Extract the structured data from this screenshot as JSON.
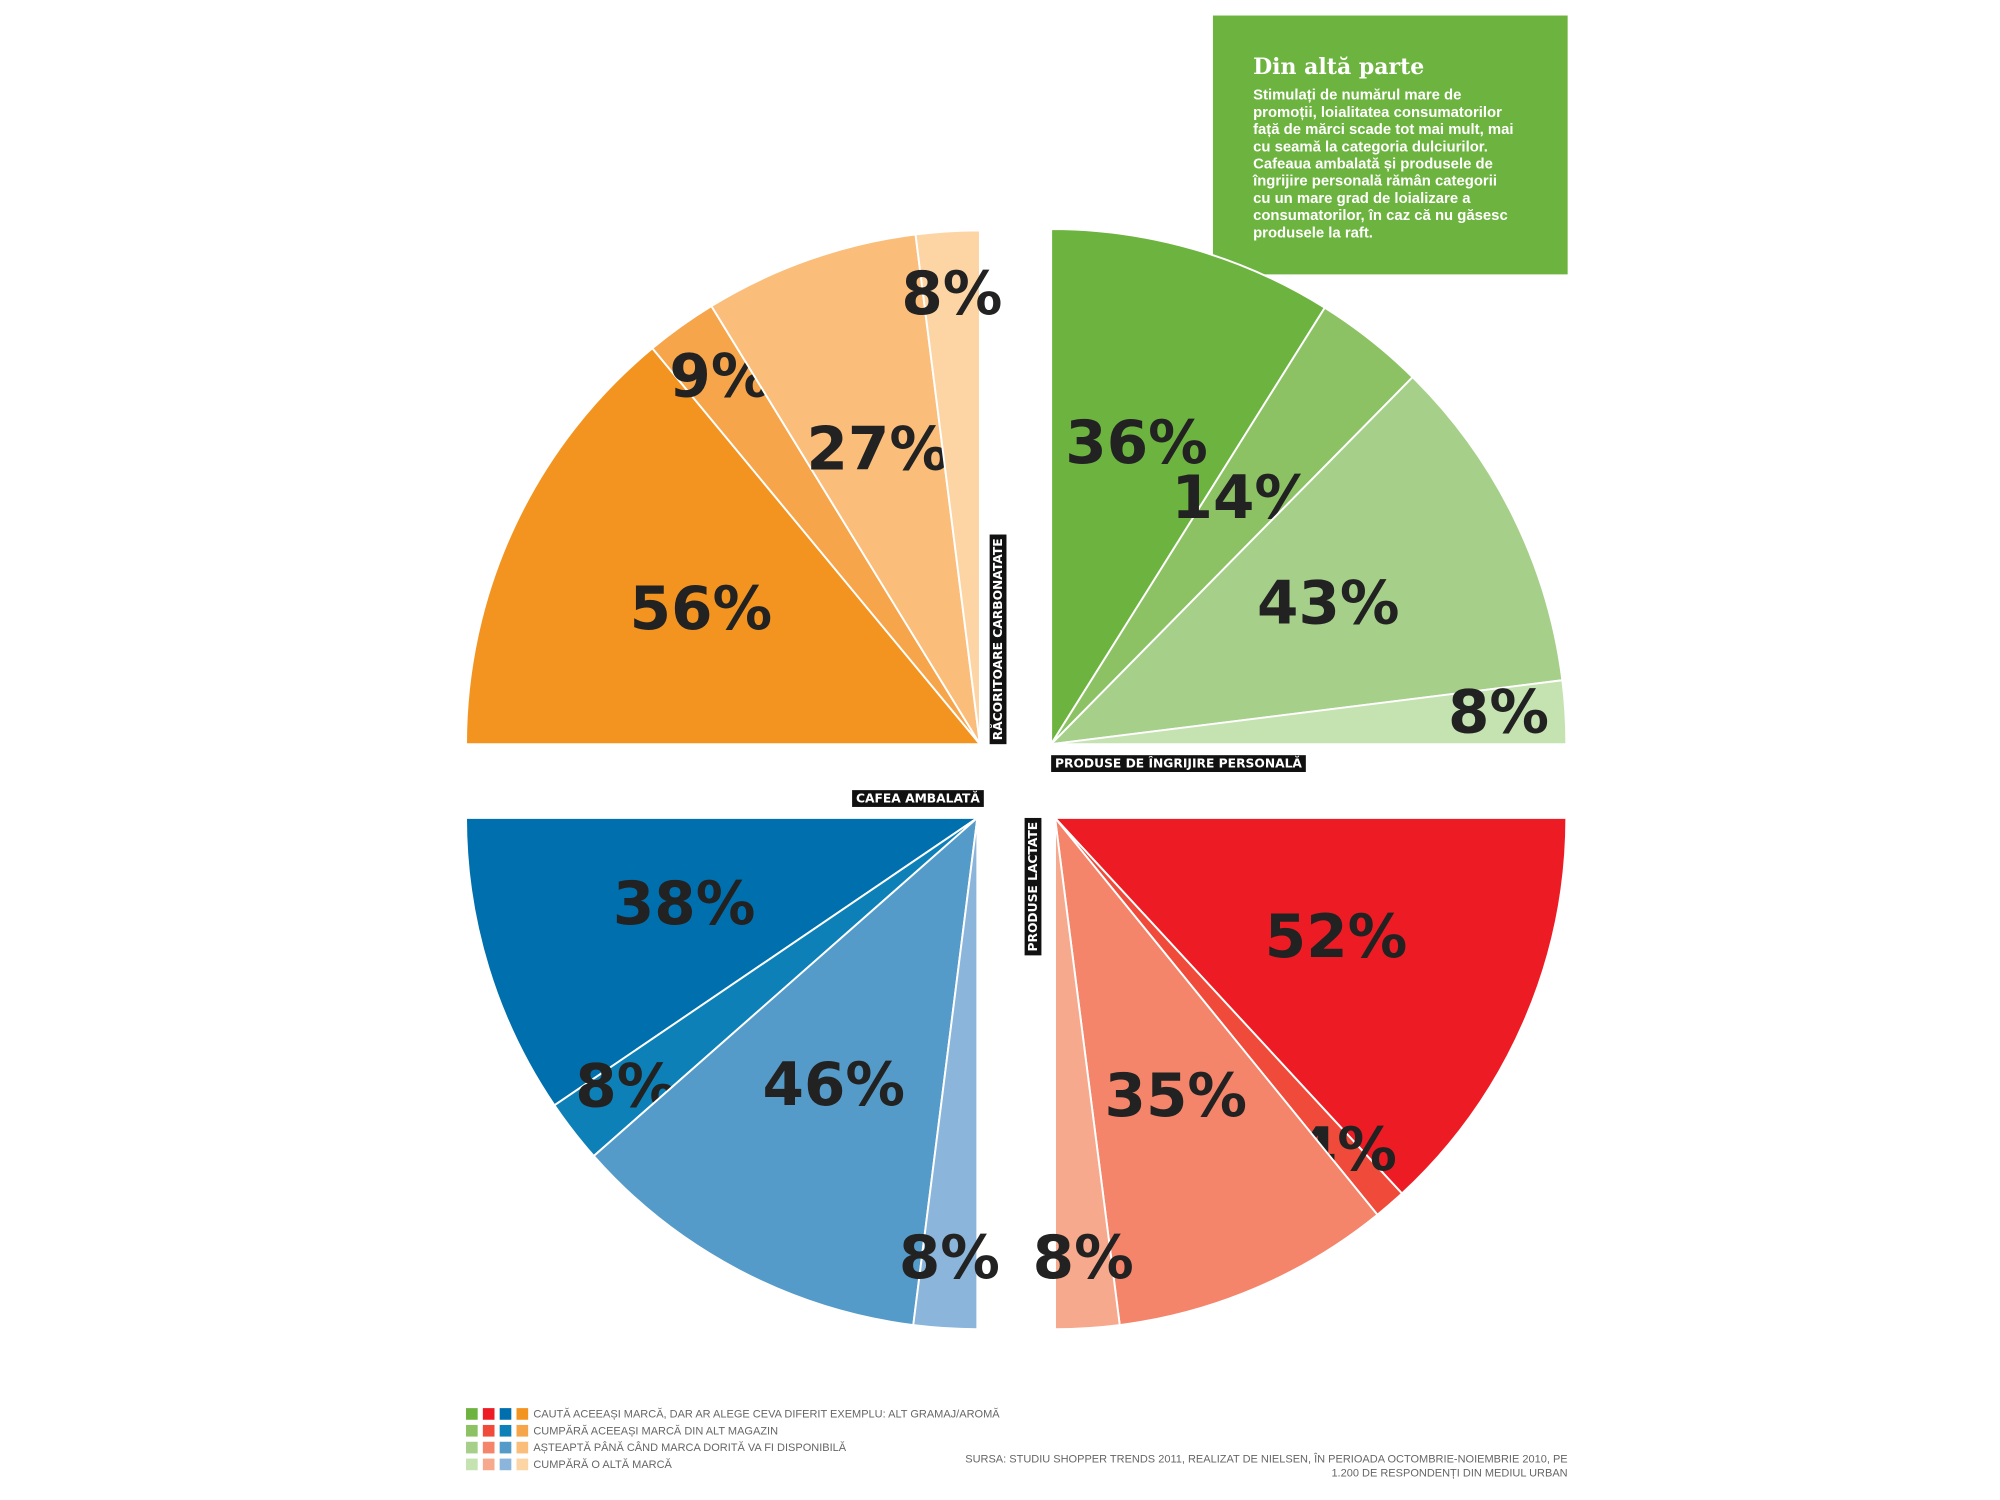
{
  "chart_data": [
    {
      "type": "pie",
      "title": "PRODUSE DE ÎNGRIJIRE PERSONALĂ",
      "values": [
        36,
        14,
        43,
        8
      ],
      "value_labels": [
        "36%",
        "14%",
        "43%",
        "8%"
      ],
      "colors": [
        "#6db33f",
        "#8cc264",
        "#a6d08a",
        "#c5e2b1"
      ]
    },
    {
      "type": "pie",
      "title": "PRODUSE LACTATE",
      "values": [
        52,
        4,
        35,
        8
      ],
      "value_labels": [
        "52%",
        "4%",
        "35%",
        "8%"
      ],
      "colors": [
        "#ed1c24",
        "#f04a3a",
        "#f4846a",
        "#f7a98d"
      ]
    },
    {
      "type": "pie",
      "title": "CAFEA AMBALATĂ",
      "values": [
        38,
        8,
        46,
        8
      ],
      "value_labels": [
        "38%",
        "8%",
        "46%",
        "8%"
      ],
      "colors": [
        "#006fad",
        "#0d80b8",
        "#559bc9",
        "#8bb5da"
      ]
    },
    {
      "type": "pie",
      "title": "RĂCORITOARE CARBONATATE",
      "values": [
        56,
        9,
        27,
        8
      ],
      "value_labels": [
        "56%",
        "9%",
        "27%",
        "8%"
      ],
      "colors": [
        "#f39420",
        "#f6a54a",
        "#fbbd7a",
        "#fdd5a4"
      ]
    }
  ],
  "box": {
    "title": "Din altă parte",
    "lines": [
      "Stimulați de numărul mare de",
      "promoții, loialitatea consumatorilor",
      "față de mărci scade tot mai mult, mai",
      "cu seamă la categoria dulciurilor.",
      "Cafeaua ambalată și produsele de",
      "îngrijire personală rămân categorii",
      "cu un mare grad de loializare a",
      "consumatorilor, în caz că nu găsesc",
      "produsele la raft."
    ]
  },
  "legend": [
    "CAUTĂ ACEEAȘI MARCĂ, DAR AR ALEGE CEVA DIFERIT EXEMPLU: ALT GRAMAJ/AROMĂ",
    "CUMPĂRĂ ACEEAȘI MARCĂ DIN ALT MAGAZIN",
    "AȘTEAPTĂ PÂNĂ CÂND MARCA DORITĂ VA FI DISPONIBILĂ",
    "CUMPĂRĂ O ALTĂ MARCĂ"
  ],
  "source": [
    "SURSA: STUDIU SHOPPER TRENDS 2011, REALIZAT DE NIELSEN, ÎN PERIOADA OCTOMBRIE-NOIEMBRIE 2010, PE",
    "1.200 DE RESPONDENȚI DIN MEDIUL URBAN"
  ]
}
